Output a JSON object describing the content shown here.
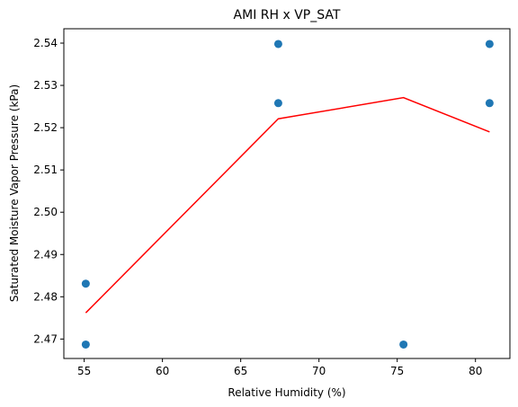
{
  "chart_data": {
    "type": "scatter",
    "title": "AMI RH x VP_SAT",
    "xlabel": "Relative Humidity (%)",
    "ylabel": "Saturated Moisture Vapor Pressure (kPa)",
    "xlim": [
      53.7,
      82.2
    ],
    "ylim": [
      2.4654,
      2.5434
    ],
    "xticks": [
      55,
      60,
      65,
      70,
      75,
      80
    ],
    "yticks": [
      2.47,
      2.48,
      2.49,
      2.5,
      2.51,
      2.52,
      2.53,
      2.54
    ],
    "xtick_labels": [
      "55",
      "60",
      "65",
      "70",
      "75",
      "80"
    ],
    "ytick_labels": [
      "2.47",
      "2.48",
      "2.49",
      "2.50",
      "2.51",
      "2.52",
      "2.53",
      "2.54"
    ],
    "grid": false,
    "series": [
      {
        "type": "scatter",
        "color": "#1f77b4",
        "x": [
          55.1,
          55.1,
          67.4,
          67.4,
          75.4,
          80.9,
          80.9
        ],
        "y": [
          2.4831,
          2.4687,
          2.5398,
          2.5258,
          2.4687,
          2.5398,
          2.5258
        ]
      },
      {
        "type": "line",
        "color": "#ff0000",
        "x": [
          55.1,
          67.4,
          75.4,
          80.9
        ],
        "y": [
          2.4762,
          2.5221,
          2.5271,
          2.519
        ]
      }
    ]
  }
}
